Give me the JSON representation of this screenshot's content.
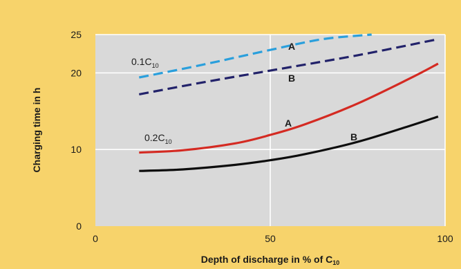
{
  "chart_data": {
    "type": "line",
    "xlabel_main": "Depth of discharge in % of C",
    "xlabel_sub": "10",
    "ylabel": "Charging time in h",
    "xlim": [
      0,
      100
    ],
    "ylim": [
      0,
      25
    ],
    "xticks": [
      0,
      50,
      100
    ],
    "yticks": [
      0,
      10,
      20,
      25
    ],
    "grid": true,
    "series": [
      {
        "group": "0.1C10",
        "curve": "A",
        "style": "dashed",
        "color": "#2a9fdc",
        "x": [
          12.5,
          30,
          50,
          65,
          79
        ],
        "y": [
          19.4,
          21.0,
          23.0,
          24.4,
          25.0
        ]
      },
      {
        "group": "0.1C10",
        "curve": "B",
        "style": "dashed",
        "color": "#22226a",
        "x": [
          12.5,
          30,
          50,
          75,
          98
        ],
        "y": [
          17.2,
          18.7,
          20.3,
          22.3,
          24.4
        ]
      },
      {
        "group": "0.2C10",
        "curve": "A",
        "style": "solid",
        "color": "#d42a22",
        "x": [
          12.5,
          25,
          40,
          50,
          60,
          75,
          90,
          98
        ],
        "y": [
          9.6,
          9.9,
          10.8,
          11.9,
          13.3,
          16.0,
          19.3,
          21.2
        ]
      },
      {
        "group": "0.2C10",
        "curve": "B",
        "style": "solid",
        "color": "#0d0d0d",
        "x": [
          12.5,
          25,
          40,
          50,
          60,
          75,
          90,
          98
        ],
        "y": [
          7.2,
          7.4,
          8.0,
          8.6,
          9.4,
          11.0,
          13.1,
          14.3
        ]
      }
    ],
    "annotations": {
      "group_01_main": "0.1C",
      "group_01_sub": "10",
      "group_02_main": "0.2C",
      "group_02_sub": "10",
      "curve_a": "A",
      "curve_b": "B"
    }
  }
}
